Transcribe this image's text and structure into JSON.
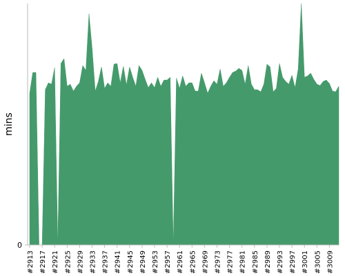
{
  "chart_data": {
    "type": "area",
    "ylabel": "mins",
    "color": "#459a6b",
    "categories": [
      "#2913",
      null,
      null,
      null,
      "#2917",
      null,
      null,
      null,
      "#2921",
      null,
      null,
      null,
      "#2925",
      null,
      null,
      null,
      "#2929",
      null,
      null,
      null,
      "#2933",
      null,
      null,
      null,
      "#2937",
      null,
      null,
      null,
      "#2941",
      null,
      null,
      null,
      "#2945",
      null,
      null,
      null,
      "#2949",
      null,
      null,
      null,
      "#2953",
      null,
      null,
      null,
      "#2957",
      null,
      null,
      null,
      "#2961",
      null,
      null,
      null,
      "#2965",
      null,
      null,
      null,
      "#2969",
      null,
      null,
      null,
      "#2973",
      null,
      null,
      null,
      "#2977",
      null,
      null,
      null,
      "#2981",
      null,
      null,
      null,
      "#2985",
      null,
      null,
      null,
      "#2989",
      null,
      null,
      null,
      "#2993",
      null,
      null,
      null,
      "#2997",
      null,
      null,
      null,
      "#3001",
      null,
      null,
      null,
      "#3005",
      null,
      null,
      null,
      "#3009",
      null,
      null,
      null
    ],
    "values": [
      22,
      25,
      25,
      0,
      0,
      22.5,
      23.5,
      23.3,
      25.7,
      0,
      26.3,
      27,
      23,
      23.3,
      22.3,
      23,
      23.5,
      26,
      25.3,
      33.5,
      28.5,
      22.3,
      23.7,
      25.8,
      22.7,
      23.5,
      23,
      26.2,
      26.3,
      23.5,
      25.9,
      23.2,
      25.8,
      24.3,
      23,
      26,
      25.3,
      24,
      22.8,
      23.5,
      22.8,
      24.3,
      23,
      23.9,
      23.9,
      24.3,
      0,
      24.2,
      22.7,
      24.5,
      23,
      23.5,
      23.5,
      22.3,
      22.3,
      24.9,
      23.5,
      22,
      23,
      23.8,
      23.3,
      25.5,
      23,
      23.5,
      24.3,
      25,
      25.2,
      25.6,
      25.3,
      23.3,
      26,
      23.3,
      22.5,
      22.5,
      22.2,
      23.3,
      26.2,
      25.8,
      22.2,
      22.7,
      26.3,
      24.3,
      23.7,
      23.3,
      24.6,
      22.8,
      25.5,
      35,
      24.3,
      24.5,
      24.9,
      24,
      23.3,
      23.1,
      23.7,
      23.9,
      23.4,
      22.3,
      22.2,
      23
    ],
    "ylim": [
      0,
      35
    ],
    "yticks": [
      0
    ]
  }
}
